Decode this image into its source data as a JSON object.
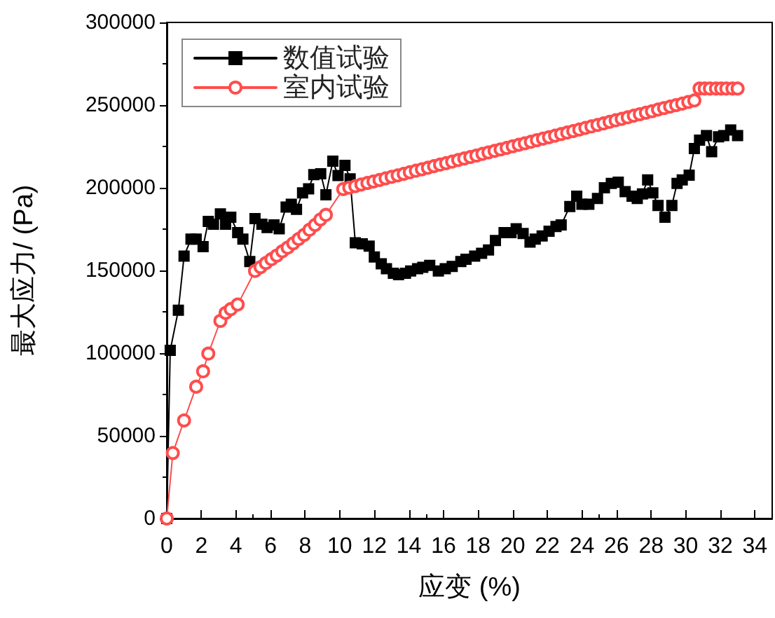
{
  "chart_data": {
    "type": "line",
    "xlabel": "应变 (%)",
    "ylabel": "最大应力/ (Pa)",
    "xlim": [
      0,
      35
    ],
    "xticks": [
      0,
      2,
      4,
      6,
      8,
      10,
      12,
      14,
      16,
      18,
      20,
      22,
      24,
      26,
      28,
      30,
      32,
      34
    ],
    "ylim": [
      0,
      300000
    ],
    "yticks": [
      0,
      50000,
      100000,
      150000,
      200000,
      250000,
      300000
    ],
    "grid": false,
    "legend": "top left",
    "line_style": "solid",
    "series": [
      {
        "name": "数值试验",
        "color": "#000000",
        "marker": "square",
        "x": [
          0,
          0.2,
          0.67,
          1.0,
          1.4,
          1.7,
          2.1,
          2.4,
          2.7,
          3.1,
          3.4,
          3.7,
          4.1,
          4.4,
          4.8,
          5.1,
          5.5,
          5.8,
          6.2,
          6.5,
          6.9,
          7.2,
          7.5,
          7.85,
          8.2,
          8.5,
          8.9,
          9.2,
          9.6,
          9.9,
          10.3,
          10.6,
          10.9,
          11.3,
          11.7,
          12.0,
          12.4,
          12.7,
          13.1,
          13.4,
          13.8,
          14.1,
          14.5,
          14.8,
          15.2,
          15.7,
          16.1,
          16.5,
          17.0,
          17.3,
          17.8,
          18.2,
          18.6,
          19.0,
          19.5,
          19.9,
          20.2,
          20.6,
          21.0,
          21.3,
          21.7,
          22.1,
          22.5,
          22.8,
          23.3,
          23.7,
          24.0,
          24.4,
          24.9,
          25.3,
          25.7,
          26.1,
          26.5,
          26.9,
          27.2,
          27.5,
          27.8,
          28.1,
          28.4,
          28.8,
          29.2,
          29.5,
          29.8,
          30.2,
          30.5,
          30.8,
          31.2,
          31.5,
          31.9,
          32.2,
          32.6,
          33.0
        ],
        "values": [
          0,
          101700,
          126000,
          158700,
          169000,
          169000,
          164400,
          179700,
          178000,
          184200,
          178000,
          182200,
          172900,
          169000,
          155400,
          181400,
          178000,
          176000,
          177500,
          175200,
          188400,
          190000,
          187000,
          196900,
          199400,
          207900,
          208500,
          195800,
          216100,
          207400,
          213600,
          205400,
          166700,
          166100,
          164700,
          158200,
          154000,
          151100,
          148300,
          147500,
          148300,
          149700,
          151100,
          151900,
          153100,
          149700,
          151100,
          152400,
          155400,
          156800,
          158700,
          160400,
          162400,
          168100,
          172900,
          172900,
          175200,
          172300,
          167200,
          169000,
          170900,
          173700,
          176600,
          177500,
          188700,
          194900,
          190000,
          190000,
          193500,
          200000,
          202600,
          203400,
          197700,
          194900,
          193500,
          196300,
          204800,
          196900,
          189300,
          182200,
          189300,
          202600,
          204800,
          207600,
          223700,
          228800,
          231600,
          221800,
          230800,
          231600,
          235000,
          231600
        ]
      },
      {
        "name": "室内试验",
        "color": "#ff4d4d",
        "marker": "circle",
        "x": [
          0,
          0.35,
          1.0,
          1.7,
          2.1,
          2.4,
          3.1,
          3.4,
          3.7,
          4.1,
          5.1,
          5.42,
          5.73,
          6.05,
          6.36,
          6.68,
          6.99,
          7.31,
          7.62,
          7.94,
          8.25,
          8.57,
          8.88,
          9.2,
          10.2,
          10.55,
          10.9,
          11.25,
          11.6,
          11.95,
          12.3,
          12.65,
          13.0,
          13.35,
          13.7,
          14.05,
          14.4,
          14.75,
          15.1,
          15.45,
          15.8,
          16.15,
          16.5,
          16.85,
          17.2,
          17.55,
          17.9,
          18.25,
          18.6,
          18.95,
          19.3,
          19.65,
          20.0,
          20.35,
          20.7,
          21.05,
          21.4,
          21.75,
          22.1,
          22.45,
          22.8,
          23.15,
          23.5,
          23.85,
          24.2,
          24.55,
          24.9,
          25.25,
          25.6,
          25.95,
          26.3,
          26.65,
          27.0,
          27.35,
          27.7,
          28.05,
          28.4,
          28.75,
          29.1,
          29.45,
          29.8,
          30.15,
          30.5,
          30.8,
          31.1,
          31.4,
          31.75,
          32.05,
          32.35,
          32.7,
          33.0
        ],
        "values": [
          0,
          39600,
          59300,
          79700,
          89000,
          99700,
          119500,
          124300,
          126600,
          129400,
          149700,
          152000,
          154500,
          156800,
          159000,
          161600,
          163800,
          166400,
          169000,
          171500,
          174600,
          177500,
          180800,
          183600,
          199200,
          200100,
          201000,
          202000,
          202900,
          203800,
          204700,
          205700,
          206600,
          207500,
          208400,
          209400,
          210300,
          211200,
          212100,
          213100,
          214000,
          214900,
          215800,
          216800,
          217700,
          218600,
          219500,
          220500,
          221400,
          222300,
          223200,
          224100,
          225100,
          226000,
          226900,
          227800,
          228800,
          229700,
          230600,
          231500,
          232500,
          233400,
          234300,
          235200,
          236200,
          237100,
          238000,
          238900,
          239900,
          240800,
          241700,
          242600,
          243600,
          244500,
          245400,
          246300,
          247300,
          248200,
          249100,
          250000,
          250900,
          251900,
          252800,
          260000,
          260000,
          260000,
          260000,
          260000,
          260000,
          260000,
          260000
        ]
      }
    ]
  }
}
